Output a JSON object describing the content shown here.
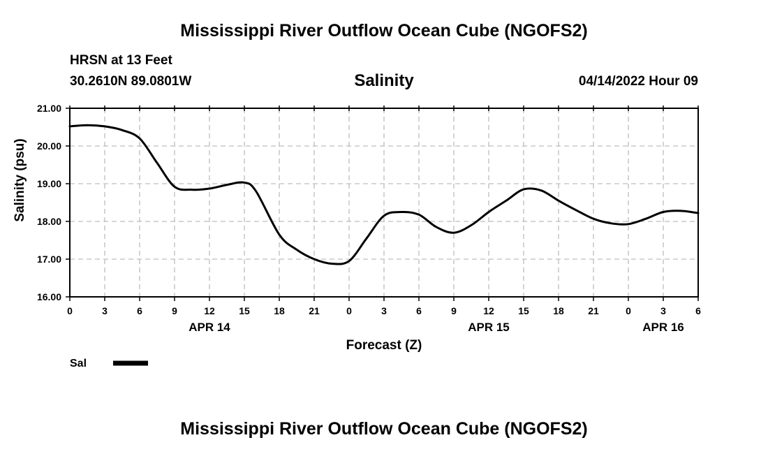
{
  "header": {
    "title": "Mississippi River Outflow Ocean Cube (NGOFS2)",
    "station": "HRSN at 13 Feet",
    "coordinates": "30.2610N  89.0801W",
    "timestamp": "04/14/2022 Hour 09"
  },
  "footer": {
    "title": "Mississippi River Outflow Ocean Cube (NGOFS2)"
  },
  "chart_data": {
    "type": "line",
    "title": "Salinity",
    "xlabel": "Forecast (Z)",
    "ylabel": "Salinity (psu)",
    "ylim": [
      16.0,
      21.0
    ],
    "yticks": [
      "16.00",
      "17.00",
      "18.00",
      "19.00",
      "20.00",
      "21.00"
    ],
    "xlim": [
      0,
      54
    ],
    "xticks": [
      "0",
      "3",
      "6",
      "9",
      "12",
      "15",
      "18",
      "21",
      "0",
      "3",
      "6",
      "9",
      "12",
      "15",
      "18",
      "21",
      "0",
      "3",
      "6"
    ],
    "date_labels": [
      {
        "label": "APR 14",
        "hour": 12
      },
      {
        "label": "APR 15",
        "hour": 36
      },
      {
        "label": "APR 16",
        "hour": 51
      }
    ],
    "grid": true,
    "legend": [
      {
        "name": "Sal",
        "color": "#000000"
      }
    ],
    "series": [
      {
        "name": "Sal",
        "x": [
          0,
          1.5,
          3,
          4.5,
          6,
          7.5,
          9,
          10.5,
          12,
          13.5,
          15,
          16,
          18,
          19.5,
          21,
          22.5,
          24,
          25.5,
          27,
          28.5,
          30,
          31.5,
          33,
          34.5,
          36,
          37.5,
          39,
          40.5,
          42,
          43.5,
          45,
          46.5,
          48,
          49.5,
          51,
          52.5,
          54
        ],
        "values": [
          20.52,
          20.55,
          20.52,
          20.42,
          20.2,
          19.55,
          18.92,
          18.84,
          18.87,
          18.97,
          19.03,
          18.8,
          17.65,
          17.25,
          17.0,
          16.88,
          16.95,
          17.55,
          18.15,
          18.25,
          18.18,
          17.85,
          17.7,
          17.9,
          18.25,
          18.55,
          18.85,
          18.82,
          18.55,
          18.3,
          18.07,
          17.95,
          17.93,
          18.07,
          18.25,
          18.28,
          18.22
        ]
      }
    ]
  }
}
